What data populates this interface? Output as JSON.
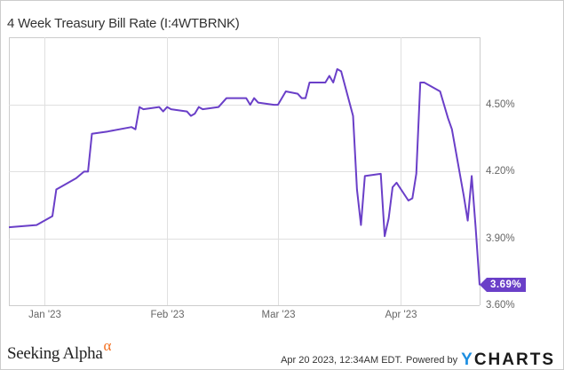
{
  "page": {
    "title": "4 Week Treasury Bill Rate (I:4WTBRNK)",
    "timestamp": "Apr 20 2023, 12:34AM EDT.",
    "powered_by": "Powered by",
    "brand_left": "Seeking Alpha",
    "brand_left_symbol": "α",
    "brand_right_y": "Y",
    "brand_right_rest": "CHARTS",
    "last_value_badge": "3.69%"
  },
  "colors": {
    "line": "#6a3fc8",
    "grid": "#e0e0e0",
    "axis_text": "#666666",
    "seeking_alpha_accent": "#f37021",
    "ycharts_y": "#1e8fe1"
  },
  "chart_data": {
    "type": "line",
    "title": "4 Week Treasury Bill Rate (I:4WTBRNK)",
    "xlabel": "",
    "ylabel": "",
    "ylim": [
      3.6,
      4.72
    ],
    "yticks": [
      "3.60%",
      "3.90%",
      "4.20%",
      "4.50%"
    ],
    "xticks": [
      "Jan '23",
      "Feb '23",
      "Mar '23",
      "Apr '23"
    ],
    "grid": true,
    "legend": "none",
    "last_value_label": "3.69%",
    "series": [
      {
        "name": "4 Week Treasury Bill Rate",
        "points": [
          {
            "date": "2022-12-23",
            "value": 3.95
          },
          {
            "date": "2022-12-30",
            "value": 3.96
          },
          {
            "date": "2023-01-03",
            "value": 4.0
          },
          {
            "date": "2023-01-04",
            "value": 4.12
          },
          {
            "date": "2023-01-05",
            "value": 4.13
          },
          {
            "date": "2023-01-09",
            "value": 4.17
          },
          {
            "date": "2023-01-11",
            "value": 4.2
          },
          {
            "date": "2023-01-12",
            "value": 4.2
          },
          {
            "date": "2023-01-13",
            "value": 4.37
          },
          {
            "date": "2023-01-17",
            "value": 4.38
          },
          {
            "date": "2023-01-23",
            "value": 4.4
          },
          {
            "date": "2023-01-24",
            "value": 4.39
          },
          {
            "date": "2023-01-25",
            "value": 4.49
          },
          {
            "date": "2023-01-26",
            "value": 4.48
          },
          {
            "date": "2023-01-30",
            "value": 4.49
          },
          {
            "date": "2023-01-31",
            "value": 4.47
          },
          {
            "date": "2023-02-01",
            "value": 4.49
          },
          {
            "date": "2023-02-02",
            "value": 4.48
          },
          {
            "date": "2023-02-06",
            "value": 4.47
          },
          {
            "date": "2023-02-07",
            "value": 4.45
          },
          {
            "date": "2023-02-08",
            "value": 4.46
          },
          {
            "date": "2023-02-09",
            "value": 4.49
          },
          {
            "date": "2023-02-10",
            "value": 4.48
          },
          {
            "date": "2023-02-14",
            "value": 4.49
          },
          {
            "date": "2023-02-16",
            "value": 4.53
          },
          {
            "date": "2023-02-21",
            "value": 4.53
          },
          {
            "date": "2023-02-22",
            "value": 4.5
          },
          {
            "date": "2023-02-23",
            "value": 4.53
          },
          {
            "date": "2023-02-24",
            "value": 4.51
          },
          {
            "date": "2023-02-28",
            "value": 4.5
          },
          {
            "date": "2023-03-01",
            "value": 4.5
          },
          {
            "date": "2023-03-03",
            "value": 4.56
          },
          {
            "date": "2023-03-06",
            "value": 4.55
          },
          {
            "date": "2023-03-07",
            "value": 4.53
          },
          {
            "date": "2023-03-08",
            "value": 4.53
          },
          {
            "date": "2023-03-09",
            "value": 4.6
          },
          {
            "date": "2023-03-13",
            "value": 4.6
          },
          {
            "date": "2023-03-14",
            "value": 4.63
          },
          {
            "date": "2023-03-15",
            "value": 4.6
          },
          {
            "date": "2023-03-16",
            "value": 4.66
          },
          {
            "date": "2023-03-17",
            "value": 4.65
          },
          {
            "date": "2023-03-20",
            "value": 4.45
          },
          {
            "date": "2023-03-21",
            "value": 4.12
          },
          {
            "date": "2023-03-22",
            "value": 3.96
          },
          {
            "date": "2023-03-23",
            "value": 4.18
          },
          {
            "date": "2023-03-27",
            "value": 4.19
          },
          {
            "date": "2023-03-28",
            "value": 3.91
          },
          {
            "date": "2023-03-29",
            "value": 3.99
          },
          {
            "date": "2023-03-30",
            "value": 4.13
          },
          {
            "date": "2023-03-31",
            "value": 4.15
          },
          {
            "date": "2023-04-03",
            "value": 4.07
          },
          {
            "date": "2023-04-04",
            "value": 4.08
          },
          {
            "date": "2023-04-05",
            "value": 4.19
          },
          {
            "date": "2023-04-06",
            "value": 4.6
          },
          {
            "date": "2023-04-07",
            "value": 4.6
          },
          {
            "date": "2023-04-11",
            "value": 4.56
          },
          {
            "date": "2023-04-13",
            "value": 4.44
          },
          {
            "date": "2023-04-14",
            "value": 4.39
          },
          {
            "date": "2023-04-17",
            "value": 4.09
          },
          {
            "date": "2023-04-18",
            "value": 3.98
          },
          {
            "date": "2023-04-19",
            "value": 4.18
          },
          {
            "date": "2023-04-20",
            "value": 3.95
          },
          {
            "date": "2023-04-21",
            "value": 3.69
          }
        ]
      }
    ]
  }
}
